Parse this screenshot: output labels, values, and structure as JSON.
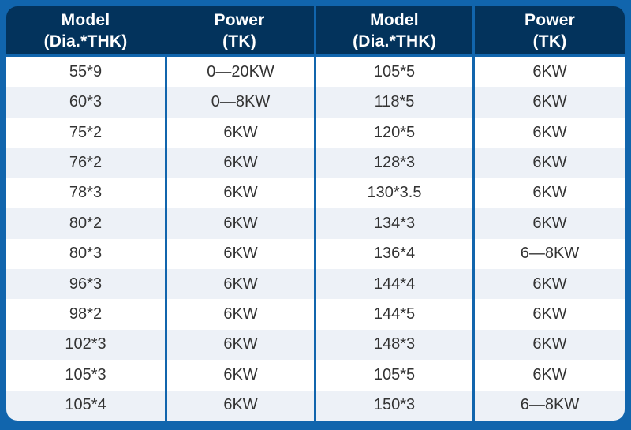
{
  "colors": {
    "frame_blue": "#1165ad",
    "header_navy": "#03335c",
    "row_alt": "#edf1f7",
    "row_white": "#ffffff",
    "header_text": "#ffffff",
    "body_text": "#333333"
  },
  "table": {
    "headers": [
      {
        "title": "Model",
        "subtitle": "(Dia.*THK)"
      },
      {
        "title": "Power",
        "subtitle": "(TK)"
      },
      {
        "title": "Model",
        "subtitle": "(Dia.*THK)"
      },
      {
        "title": "Power",
        "subtitle": "(TK)"
      }
    ],
    "rows": [
      [
        "55*9",
        "0—20KW",
        "105*5",
        "6KW"
      ],
      [
        "60*3",
        "0—8KW",
        "118*5",
        "6KW"
      ],
      [
        "75*2",
        "6KW",
        "120*5",
        "6KW"
      ],
      [
        "76*2",
        "6KW",
        "128*3",
        "6KW"
      ],
      [
        "78*3",
        "6KW",
        "130*3.5",
        "6KW"
      ],
      [
        "80*2",
        "6KW",
        "134*3",
        "6KW"
      ],
      [
        "80*3",
        "6KW",
        "136*4",
        "6—8KW"
      ],
      [
        "96*3",
        "6KW",
        "144*4",
        "6KW"
      ],
      [
        "98*2",
        "6KW",
        "144*5",
        "6KW"
      ],
      [
        "102*3",
        "6KW",
        "148*3",
        "6KW"
      ],
      [
        "105*3",
        "6KW",
        "105*5",
        "6KW"
      ],
      [
        "105*4",
        "6KW",
        "150*3",
        "6—8KW"
      ]
    ]
  }
}
